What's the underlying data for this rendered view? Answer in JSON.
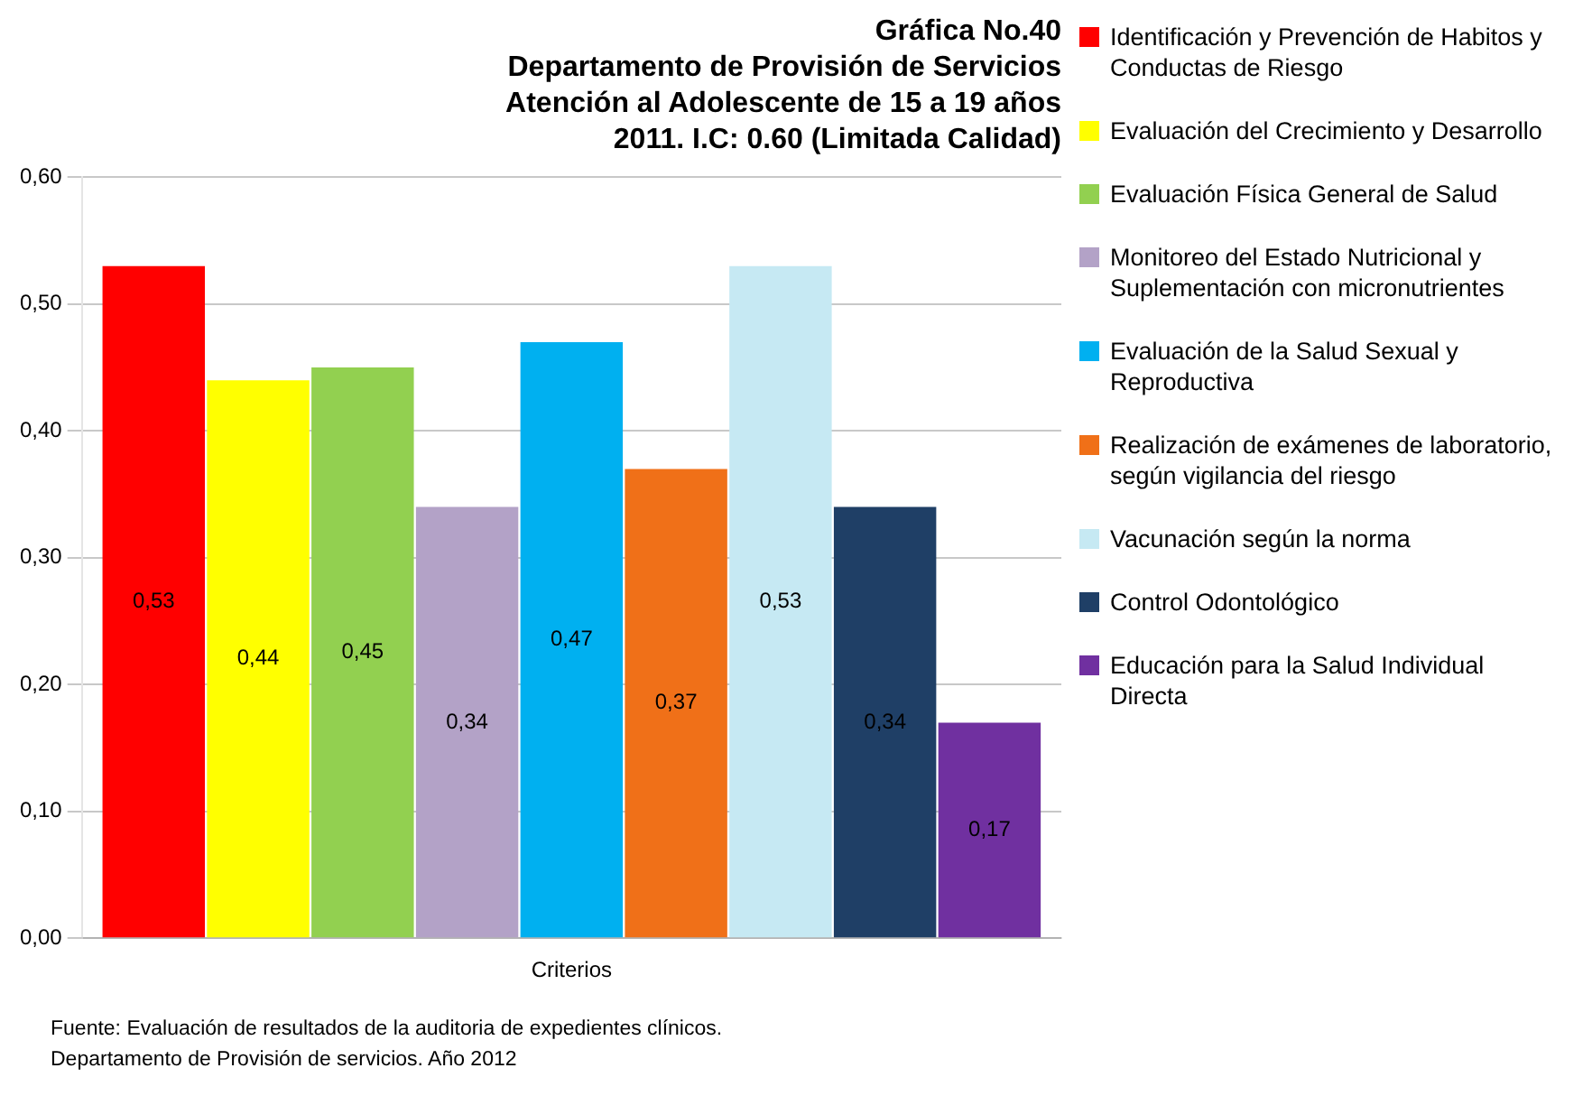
{
  "chart_data": {
    "type": "bar",
    "title": "Gráfica No.40\nDepartamento de Provisión de Servicios\nAtención al Adolescente de 15 a  19 años\n2011.  I.C:  0.60 (Limitada Calidad)",
    "categories": [
      "Criterios"
    ],
    "series": [
      {
        "name": "Identificación  y Prevención de Habitos y Conductas de Riesgo",
        "color": "#ff0000",
        "values": [
          0.53
        ],
        "value_labels": [
          "0,53"
        ]
      },
      {
        "name": "Evaluación del Crecimiento y Desarrollo",
        "color": "#ffff00",
        "values": [
          0.44
        ],
        "value_labels": [
          "0,44"
        ]
      },
      {
        "name": "Evaluación Física General de Salud",
        "color": "#92d050",
        "values": [
          0.45
        ],
        "value_labels": [
          "0,45"
        ]
      },
      {
        "name": "Monitoreo del Estado Nutricional y Suplementación con micronutrientes",
        "color": "#b3a2c7",
        "values": [
          0.34
        ],
        "value_labels": [
          "0,34"
        ]
      },
      {
        "name": "Evaluación de la Salud Sexual y Reproductiva",
        "color": "#00b0f0",
        "values": [
          0.47
        ],
        "value_labels": [
          "0,47"
        ]
      },
      {
        "name": "Realización de exámenes de laboratorio, según vigilancia del riesgo",
        "color": "#f07018",
        "values": [
          0.37
        ],
        "value_labels": [
          "0,37"
        ]
      },
      {
        "name": "Vacunación  según la norma",
        "color": "#c6e9f3",
        "values": [
          0.53
        ],
        "value_labels": [
          "0,53"
        ]
      },
      {
        "name": "Control Odontológico",
        "color": "#1f3f66",
        "values": [
          0.34
        ],
        "value_labels": [
          "0,34"
        ]
      },
      {
        "name": "Educación para la Salud Individual Directa",
        "color": "#7030a0",
        "values": [
          0.17
        ],
        "value_labels": [
          "0,17"
        ]
      }
    ],
    "ylim": [
      0,
      0.6
    ],
    "yticks": [
      {
        "value": 0,
        "label": "0,00"
      },
      {
        "value": 0.1,
        "label": "0,10"
      },
      {
        "value": 0.2,
        "label": "0,20"
      },
      {
        "value": 0.3,
        "label": "0,30"
      },
      {
        "value": 0.4,
        "label": "0,40"
      },
      {
        "value": 0.5,
        "label": "0,50"
      },
      {
        "value": 0.6,
        "label": "0,60"
      }
    ],
    "grid": "y",
    "legend": "right",
    "annotations": [
      "Fuente: Evaluación de resultados de la auditoria de expedientes clínicos.\nDepartamento de Provisión de servicios. Año 2012"
    ]
  }
}
